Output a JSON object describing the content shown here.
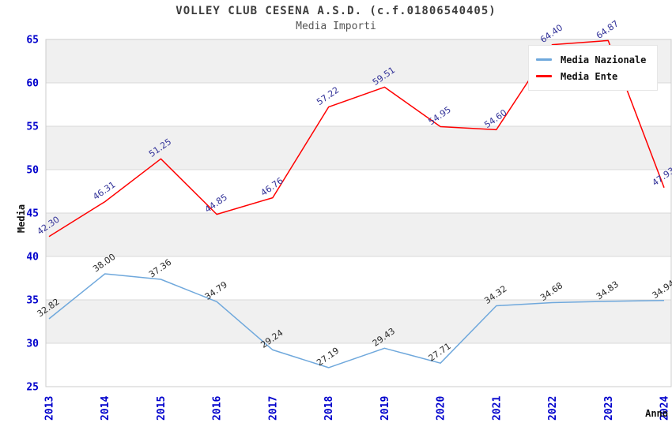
{
  "chart_data": {
    "type": "line",
    "title": "VOLLEY CLUB CESENA A.S.D. (c.f.01806540405)",
    "subtitle": "Media Importi",
    "xlabel": "Anno",
    "ylabel": "Media",
    "ylim": [
      25,
      65
    ],
    "ytick_step": 5,
    "grid": true,
    "alternating_bands": true,
    "legend_position": "top-right",
    "categories": [
      "2013",
      "2014",
      "2015",
      "2016",
      "2017",
      "2018",
      "2019",
      "2020",
      "2021",
      "2022",
      "2023",
      "2024"
    ],
    "series": [
      {
        "name": "Media Nazionale",
        "color": "#6fa8dc",
        "label_color": "#2b2b2b",
        "values": [
          32.82,
          38.0,
          37.36,
          34.79,
          29.24,
          27.19,
          29.43,
          27.71,
          34.32,
          34.68,
          34.83,
          34.94
        ]
      },
      {
        "name": "Media Ente",
        "color": "#ff0000",
        "label_color": "#333399",
        "values": [
          42.3,
          46.31,
          51.25,
          44.85,
          46.76,
          57.22,
          59.51,
          54.95,
          54.6,
          64.4,
          64.87,
          47.93
        ]
      }
    ],
    "style": {
      "band_color": "#f0f0f0",
      "grid_color": "#d9d9d9",
      "plot_border_color": "#cccccc",
      "axis_tick_color": "#0000cc",
      "axis_title_color": "#111111",
      "point_label_font_px": 11,
      "tick_font_px": 13
    }
  }
}
